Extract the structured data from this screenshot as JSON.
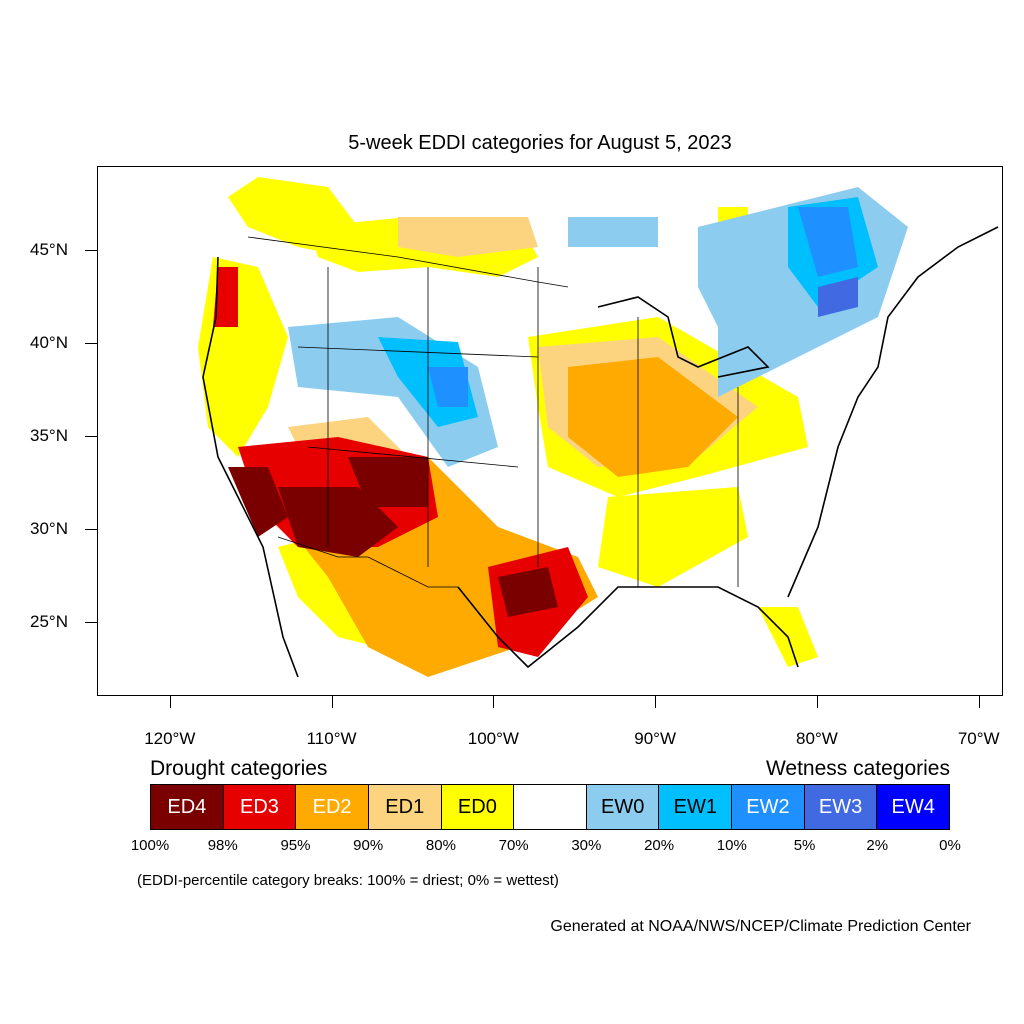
{
  "title": "5-week EDDI categories for August 5, 2023",
  "map": {
    "projection": "lat-lon",
    "lon_range": [
      -124.5,
      -68.5
    ],
    "lat_range": [
      21,
      49.5
    ],
    "lat_ticks": [
      {
        "value": 45,
        "label": "45°N"
      },
      {
        "value": 40,
        "label": "40°N"
      },
      {
        "value": 35,
        "label": "35°N"
      },
      {
        "value": 30,
        "label": "30°N"
      },
      {
        "value": 25,
        "label": "25°N"
      }
    ],
    "lon_ticks": [
      {
        "value": -120,
        "label": "120°W"
      },
      {
        "value": -110,
        "label": "110°W"
      },
      {
        "value": -100,
        "label": "100°W"
      },
      {
        "value": -90,
        "label": "90°W"
      },
      {
        "value": -80,
        "label": "80°W"
      },
      {
        "value": -70,
        "label": "70°W"
      }
    ]
  },
  "legend": {
    "drought_heading": "Drought categories",
    "wetness_heading": "Wetness categories",
    "categories": [
      {
        "label": "ED4",
        "color": "#7a0000",
        "text_color": "#ffffff"
      },
      {
        "label": "ED3",
        "color": "#e60000",
        "text_color": "#ffffff"
      },
      {
        "label": "ED2",
        "color": "#ffaa00",
        "text_color": "#ffffff"
      },
      {
        "label": "ED1",
        "color": "#fcd37f",
        "text_color": "#000000"
      },
      {
        "label": "ED0",
        "color": "#ffff00",
        "text_color": "#000000"
      },
      {
        "label": "",
        "color": "#ffffff",
        "text_color": "#000000"
      },
      {
        "label": "EW0",
        "color": "#8ccdef",
        "text_color": "#000000"
      },
      {
        "label": "EW1",
        "color": "#00bfff",
        "text_color": "#000000"
      },
      {
        "label": "EW2",
        "color": "#1e90ff",
        "text_color": "#ffffff"
      },
      {
        "label": "EW3",
        "color": "#4169e1",
        "text_color": "#ffffff"
      },
      {
        "label": "EW4",
        "color": "#0000ff",
        "text_color": "#ffffff"
      }
    ],
    "breaks": [
      "100%",
      "98%",
      "95%",
      "90%",
      "80%",
      "70%",
      "30%",
      "20%",
      "10%",
      "5%",
      "2%",
      "0%"
    ]
  },
  "note": "(EDDI-percentile category breaks: 100% = driest; 0% = wettest)",
  "credit": "Generated at NOAA/NWS/NCEP/Climate Prediction Center"
}
